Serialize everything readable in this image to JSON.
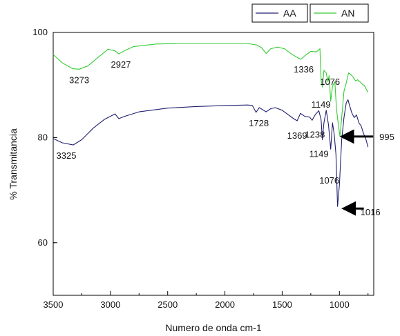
{
  "chart_data": {
    "type": "line",
    "title": "",
    "xlabel": "Numero de onda cm-1",
    "ylabel": "% Transmitancia",
    "xlim": [
      3500,
      700
    ],
    "ylim": [
      50,
      100
    ],
    "x_ticks": [
      "3500",
      "3000",
      "2500",
      "2000",
      "1500",
      "1000"
    ],
    "y_ticks": [
      "100",
      "80",
      "60"
    ],
    "legend_position": "top-right",
    "grid": false,
    "series": [
      {
        "name": "AA",
        "color": "#1f1f6e",
        "points": [
          [
            3500,
            79.8
          ],
          [
            3420,
            79.0
          ],
          [
            3325,
            78.6
          ],
          [
            3250,
            79.6
          ],
          [
            3150,
            81.8
          ],
          [
            3050,
            83.5
          ],
          [
            2960,
            84.5
          ],
          [
            2927,
            83.6
          ],
          [
            2880,
            84.0
          ],
          [
            2750,
            84.9
          ],
          [
            2500,
            85.6
          ],
          [
            2250,
            85.9
          ],
          [
            2000,
            86.1
          ],
          [
            1800,
            86.2
          ],
          [
            1760,
            86.1
          ],
          [
            1728,
            84.8
          ],
          [
            1700,
            85.7
          ],
          [
            1640,
            84.9
          ],
          [
            1600,
            85.5
          ],
          [
            1560,
            85.7
          ],
          [
            1500,
            85.2
          ],
          [
            1400,
            83.6
          ],
          [
            1369,
            83.2
          ],
          [
            1340,
            84.6
          ],
          [
            1300,
            84.0
          ],
          [
            1260,
            83.9
          ],
          [
            1238,
            83.3
          ],
          [
            1210,
            84.4
          ],
          [
            1180,
            85.1
          ],
          [
            1160,
            83.4
          ],
          [
            1149,
            79.6
          ],
          [
            1135,
            82.8
          ],
          [
            1115,
            85.2
          ],
          [
            1095,
            82.4
          ],
          [
            1076,
            77.8
          ],
          [
            1060,
            82.8
          ],
          [
            1045,
            80.6
          ],
          [
            1030,
            76.8
          ],
          [
            1016,
            66.9
          ],
          [
            1000,
            71.0
          ],
          [
            980,
            79.6
          ],
          [
            960,
            83.8
          ],
          [
            940,
            86.6
          ],
          [
            925,
            87.2
          ],
          [
            910,
            86.0
          ],
          [
            890,
            84.6
          ],
          [
            870,
            83.8
          ],
          [
            850,
            84.3
          ],
          [
            830,
            82.8
          ],
          [
            810,
            82.2
          ],
          [
            790,
            80.8
          ],
          [
            770,
            79.8
          ],
          [
            750,
            78.2
          ]
        ]
      },
      {
        "name": "AN",
        "color": "#33cc33",
        "points": [
          [
            3500,
            95.8
          ],
          [
            3420,
            94.2
          ],
          [
            3330,
            93.1
          ],
          [
            3273,
            93.0
          ],
          [
            3200,
            93.6
          ],
          [
            3100,
            95.4
          ],
          [
            3020,
            96.8
          ],
          [
            2960,
            96.5
          ],
          [
            2927,
            95.9
          ],
          [
            2880,
            96.5
          ],
          [
            2800,
            97.3
          ],
          [
            2600,
            97.8
          ],
          [
            2400,
            97.9
          ],
          [
            2200,
            97.9
          ],
          [
            2000,
            97.9
          ],
          [
            1800,
            97.9
          ],
          [
            1720,
            97.6
          ],
          [
            1680,
            97.1
          ],
          [
            1640,
            96.0
          ],
          [
            1600,
            96.9
          ],
          [
            1540,
            97.2
          ],
          [
            1480,
            96.9
          ],
          [
            1420,
            95.9
          ],
          [
            1380,
            95.4
          ],
          [
            1336,
            94.9
          ],
          [
            1300,
            95.6
          ],
          [
            1250,
            96.4
          ],
          [
            1200,
            96.3
          ],
          [
            1170,
            96.9
          ],
          [
            1160,
            91.0
          ],
          [
            1149,
            89.6
          ],
          [
            1135,
            92.8
          ],
          [
            1115,
            92.3
          ],
          [
            1100,
            90.6
          ],
          [
            1090,
            91.8
          ],
          [
            1076,
            86.9
          ],
          [
            1060,
            89.8
          ],
          [
            1040,
            90.6
          ],
          [
            1025,
            85.4
          ],
          [
            1010,
            82.6
          ],
          [
            995,
            80.2
          ],
          [
            980,
            83.8
          ],
          [
            960,
            88.8
          ],
          [
            940,
            90.4
          ],
          [
            920,
            92.3
          ],
          [
            900,
            92.0
          ],
          [
            880,
            91.5
          ],
          [
            860,
            90.8
          ],
          [
            840,
            91.0
          ],
          [
            820,
            90.6
          ],
          [
            800,
            90.2
          ],
          [
            780,
            89.8
          ],
          [
            760,
            89.0
          ],
          [
            750,
            88.6
          ]
        ]
      }
    ],
    "annotations": [
      {
        "text": "3273",
        "x": 3273,
        "y": 93.0,
        "series": "AN"
      },
      {
        "text": "2927",
        "x": 2927,
        "y": 95.9,
        "series": "AN"
      },
      {
        "text": "1336",
        "x": 1336,
        "y": 94.9,
        "series": "AN"
      },
      {
        "text": "1149",
        "x": 1149,
        "y": 89.6,
        "series": "AN"
      },
      {
        "text": "1076",
        "x": 1076,
        "y": 86.9,
        "series": "AN"
      },
      {
        "text": "995",
        "x": 995,
        "y": 80.2,
        "series": "AN"
      },
      {
        "text": "3325",
        "x": 3325,
        "y": 78.6,
        "series": "AA"
      },
      {
        "text": "1728",
        "x": 1728,
        "y": 84.8,
        "series": "AA"
      },
      {
        "text": "1369",
        "x": 1369,
        "y": 83.2,
        "series": "AA"
      },
      {
        "text": "1238",
        "x": 1238,
        "y": 83.3,
        "series": "AA"
      },
      {
        "text": "1149",
        "x": 1149,
        "y": 79.6,
        "series": "AA"
      },
      {
        "text": "1076",
        "x": 1076,
        "y": 77.8,
        "series": "AA"
      },
      {
        "text": "1016",
        "x": 1016,
        "y": 66.9,
        "series": "AA"
      }
    ]
  }
}
